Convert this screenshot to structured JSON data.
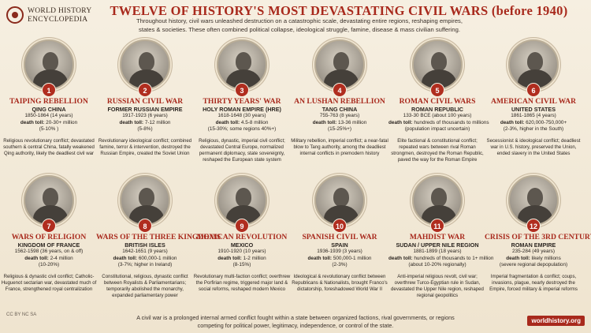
{
  "header": {
    "logo_line1": "WORLD HISTORY",
    "logo_line2": "ENCYCLOPEDIA",
    "title": "TWELVE OF HISTORY'S MOST DEVASTATING CIVIL WARS (before 1940)",
    "intro": "Throughout history, civil wars unleashed destruction on a catastrophic scale, devastating entire regions, reshaping empires, states & societies. These often combined political collapse, ideological struggle, famine, disease & mass civilian suffering."
  },
  "wars": [
    {
      "num": "1",
      "name": "TAIPING REBELLION",
      "region": "QING CHINA",
      "dates": "1850-1864 (14 years)",
      "toll_label": "death toll:",
      "toll": "20-30+ million",
      "pct": "(5-10% )",
      "desc": "Religious revolutionary conflict; devastated southern & central China, fatally weakened Qing authority, likely the deadliest civil war"
    },
    {
      "num": "2",
      "name": "RUSSIAN CIVIL WAR",
      "region": "FORMER RUSSIAN EMPIRE",
      "dates": "1917-1923 (6 years)",
      "toll_label": "death toll:",
      "toll": "7-12 million",
      "pct": "(5-8%)",
      "desc": "Revolutionary ideological conflict; combined famine, terror & intervention, destroyed the Russian Empire, created the Soviet Union"
    },
    {
      "num": "3",
      "name": "THIRTY YEARS' WAR",
      "region": "HOLY ROMAN EMPIRE (HRE)",
      "dates": "1618-1648 (30 years)",
      "toll_label": "death toll:",
      "toll": "4.5-8 million",
      "pct": "(15-30%; some regions 40%+)",
      "desc": "Religious, dynastic, imperial civil conflict; devastated Central Europe, normalized permanent diplomacy, state sovereignty, reshaped the European state system"
    },
    {
      "num": "4",
      "name": "AN LUSHAN REBELLION",
      "region": "TANG CHINA",
      "dates": "755-763 (8 years)",
      "toll_label": "death toll:",
      "toll": "13-36 million",
      "pct": "(15-25%+)",
      "desc": "Military rebellion, imperial conflict; a near-fatal blow to Tang authority, among the deadliest internal conflicts in premodern history"
    },
    {
      "num": "5",
      "name": "ROMAN CIVIL WARS",
      "region": "ROMAN REPUBLIC",
      "dates": "133-30 BCE (about 100 years)",
      "toll_label": "death toll:",
      "toll": "hundreds of thousands to millions",
      "pct": "(population impact uncertain)",
      "desc": "Elite factional & constitutional conflict; repeated wars between rival Roman strongmen, destroyed the Roman Republic, paved the way for the Roman Empire"
    },
    {
      "num": "6",
      "name": "AMERICAN CIVIL WAR",
      "region": "UNITED STATES",
      "dates": "1861-1865 (4 years)",
      "toll_label": "death toll:",
      "toll": "620,000-750,000+",
      "pct": "(2-3%, higher in the South)",
      "desc": "Secessionist & ideological conflict; deadliest war in U.S. history, preserved the Union, ended slavery in the United States"
    },
    {
      "num": "7",
      "name": "WARS OF RELIGION",
      "region": "KINGDOM OF FRANCE",
      "dates": "1562-1598 (36 years, on & off)",
      "toll_label": "death toll:",
      "toll": "2-4 million",
      "pct": "(10-20%)",
      "desc": "Religious & dynastic civil conflict; Catholic-Huguenot sectarian war, devastated much of France, strengthened royal centralization"
    },
    {
      "num": "8",
      "name": "WARS OF THE THREE KINGDOMS",
      "region": "BRITISH ISLES",
      "dates": "1642-1651 (9 years)",
      "toll_label": "death toll:",
      "toll": "600,000-1 million",
      "pct": "(3-7%; higher in Ireland)",
      "desc": "Constitutional, religious, dynastic conflict between Royalists & Parliamentarians; temporarily abolished the monarchy, expanded parliamentary power"
    },
    {
      "num": "9",
      "name": "MEXICAN REVOLUTION",
      "region": "MEXICO",
      "dates": "1910-1920 (10 years)",
      "toll_label": "death toll:",
      "toll": "1-2 million",
      "pct": "(8-15%)",
      "desc": "Revolutionary multi-faction conflict; overthrew the Porfirian regime, triggered major land & social reforms, reshaped modern Mexico"
    },
    {
      "num": "10",
      "name": "SPANISH CIVIL WAR",
      "region": "SPAIN",
      "dates": "1936-1939 (3 years)",
      "toll_label": "death toll:",
      "toll": "500,000-1 million",
      "pct": "(2-3%)",
      "desc": "Ideological & revolutionary conflict between Republicans & Nationalists, brought Franco's dictatorship, foreshadowed World War II"
    },
    {
      "num": "11",
      "name": "MAHDIST WAR",
      "region": "SUDAN / UPPER NILE REGION",
      "dates": "1881-1899 (18 years)",
      "toll_label": "death toll:",
      "toll": "hundreds of thousands to 1+ million",
      "pct": "(about 10-20% regionally)",
      "desc": "Anti-imperial religious revolt, civil war; overthrew Turco-Egyptian rule in Sudan, devastated the Upper Nile region, reshaped regional geopolitics"
    },
    {
      "num": "12",
      "name": "CRISIS OF THE 3RD CENTURY",
      "region": "ROMAN EMPIRE",
      "dates": "235-284 (49 years)",
      "toll_label": "death toll:",
      "toll": "likely millions",
      "pct": "(severe regional depopulation)",
      "desc": "Imperial fragmentation & conflict; coups, invasions, plague, nearly destroyed the Empire, forced military & imperial reforms"
    }
  ],
  "footer": {
    "text": "A civil war is a prolonged internal armed conflict fought within a state between organized factions, rival governments, or regions competing for political power, legitimacy, independence, or control of the state.",
    "site": "worldhistory.org",
    "license": "CC BY NC SA"
  }
}
